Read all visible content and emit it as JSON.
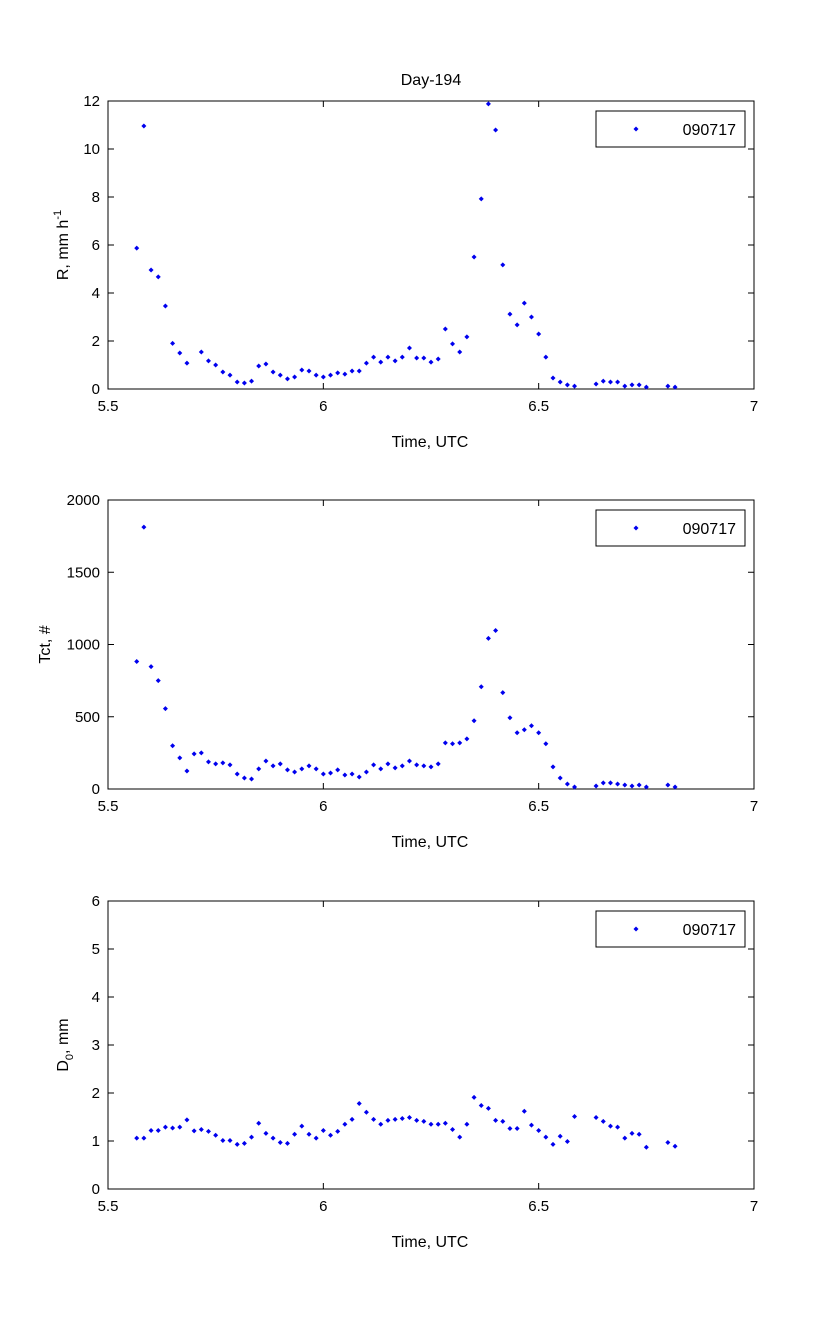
{
  "title": "Day-194",
  "colors": {
    "marker": "#0000ee",
    "axis": "#000000"
  },
  "chart_data": [
    {
      "type": "scatter",
      "title": "Day-194",
      "xlabel": "Time, UTC",
      "ylabel": "R, mm h",
      "ylabel_sup": "-1",
      "xlim": [
        5.5,
        7
      ],
      "ylim": [
        0,
        12
      ],
      "xticks": [
        "5.5",
        "6",
        "6.5",
        "7"
      ],
      "yticks": [
        "0",
        "2",
        "4",
        "6",
        "8",
        "10",
        "12"
      ],
      "legend": {
        "label": "090717",
        "position": "top-right"
      },
      "series": [
        {
          "name": "090717",
          "key": "R"
        }
      ]
    },
    {
      "type": "scatter",
      "xlabel": "Time, UTC",
      "ylabel": "Tct, #",
      "xlim": [
        5.5,
        7
      ],
      "ylim": [
        0,
        2000
      ],
      "xticks": [
        "5.5",
        "6",
        "6.5",
        "7"
      ],
      "yticks": [
        "0",
        "500",
        "1000",
        "1500",
        "2000"
      ],
      "legend": {
        "label": "090717",
        "position": "top-right"
      },
      "series": [
        {
          "name": "090717",
          "key": "Tct"
        }
      ]
    },
    {
      "type": "scatter",
      "xlabel": "Time, UTC",
      "ylabel": "D",
      "ylabel_sub": "0",
      "ylabel_suffix": ", mm",
      "xlim": [
        5.5,
        7
      ],
      "ylim": [
        0,
        6
      ],
      "xticks": [
        "5.5",
        "6",
        "6.5",
        "7"
      ],
      "yticks": [
        "0",
        "1",
        "2",
        "3",
        "4",
        "5",
        "6"
      ],
      "legend": {
        "label": "090717",
        "position": "top-right"
      },
      "series": [
        {
          "name": "090717",
          "key": "D0"
        }
      ]
    }
  ],
  "x": [
    5.5667,
    5.5833,
    5.6,
    5.6167,
    5.6333,
    5.65,
    5.6667,
    5.6833,
    5.7,
    5.7167,
    5.7333,
    5.75,
    5.7667,
    5.7833,
    5.8,
    5.8167,
    5.8333,
    5.85,
    5.8667,
    5.8833,
    5.9,
    5.9167,
    5.9333,
    5.95,
    5.9667,
    5.9833,
    6.0,
    6.0167,
    6.0333,
    6.05,
    6.0667,
    6.0833,
    6.1,
    6.1167,
    6.1333,
    6.15,
    6.1667,
    6.1833,
    6.2,
    6.2167,
    6.2333,
    6.25,
    6.2667,
    6.2833,
    6.3,
    6.3167,
    6.3333,
    6.35,
    6.3667,
    6.3833,
    6.4,
    6.4167,
    6.4333,
    6.45,
    6.4667,
    6.4833,
    6.5,
    6.5167,
    6.5333,
    6.55,
    6.5667,
    6.5833,
    6.6333,
    6.65,
    6.6667,
    6.6833,
    6.7,
    6.7167,
    6.7333,
    6.75,
    6.8,
    6.8167
  ],
  "R": [
    5.87,
    10.96,
    4.96,
    4.67,
    3.46,
    1.9,
    1.5,
    1.08,
    null,
    1.54,
    1.17,
    1.0,
    0.71,
    0.58,
    0.29,
    0.25,
    0.33,
    0.96,
    1.04,
    0.71,
    0.58,
    0.42,
    0.5,
    0.79,
    0.75,
    0.58,
    0.5,
    0.58,
    0.67,
    0.62,
    0.75,
    0.75,
    1.08,
    1.33,
    1.12,
    1.33,
    1.17,
    1.33,
    1.71,
    1.29,
    1.29,
    1.12,
    1.25,
    2.5,
    1.88,
    1.54,
    2.17,
    5.5,
    7.92,
    11.88,
    10.79,
    5.17,
    3.12,
    2.67,
    3.58,
    3.0,
    2.29,
    1.33,
    0.46,
    0.29,
    0.17,
    0.12,
    0.21,
    0.33,
    0.29,
    0.29,
    0.12,
    0.17,
    0.17,
    0.08,
    0.12,
    0.08
  ],
  "Tct": [
    882,
    1812,
    847,
    750,
    556,
    299,
    215,
    125,
    243,
    250,
    188,
    174,
    181,
    167,
    104,
    76,
    69,
    139,
    194,
    160,
    174,
    132,
    118,
    139,
    160,
    139,
    104,
    111,
    132,
    97,
    104,
    83,
    118,
    167,
    139,
    174,
    146,
    160,
    194,
    167,
    160,
    153,
    174,
    319,
    313,
    319,
    347,
    472,
    708,
    1042,
    1097,
    667,
    493,
    389,
    410,
    438,
    389,
    313,
    153,
    76,
    35,
    14,
    21,
    42,
    42,
    35,
    28,
    21,
    28,
    14,
    28,
    14
  ],
  "D0": [
    1.06,
    1.06,
    1.22,
    1.22,
    1.29,
    1.27,
    1.29,
    1.44,
    1.21,
    1.24,
    1.2,
    1.12,
    1.01,
    1.01,
    0.93,
    0.95,
    1.08,
    1.37,
    1.16,
    1.06,
    0.97,
    0.95,
    1.14,
    1.31,
    1.14,
    1.06,
    1.22,
    1.12,
    1.2,
    1.35,
    1.45,
    1.78,
    1.6,
    1.45,
    1.35,
    1.43,
    1.45,
    1.47,
    1.49,
    1.43,
    1.41,
    1.35,
    1.35,
    1.37,
    1.24,
    1.08,
    1.35,
    1.91,
    1.74,
    1.68,
    1.43,
    1.41,
    1.26,
    1.26,
    1.62,
    1.33,
    1.22,
    1.08,
    0.93,
    1.1,
    0.99,
    1.51,
    1.49,
    1.41,
    1.31,
    1.29,
    1.06,
    1.16,
    1.14,
    0.87,
    0.97,
    0.89
  ]
}
